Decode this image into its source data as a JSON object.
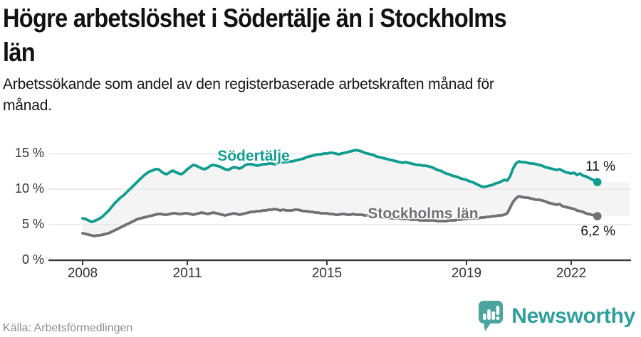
{
  "header": {
    "title": "Högre arbetslöshet i Södertälje än i Stockholms län",
    "title_lines": [
      "Högre arbetslöshet i Södertälje än i Stockholms",
      "län"
    ],
    "subtitle": "Arbetssökande som andel av den registerbaserade arbetskraften månad för månad.",
    "subtitle_lines": [
      "Arbetssökande som andel av den registerbaserade arbetskraften månad för",
      "månad."
    ]
  },
  "footer": {
    "source": "Källa: Arbetsförmedlingen",
    "brand_name": "Newsworthy"
  },
  "colors": {
    "sodertalje": "#119c90",
    "stockholm": "#707075",
    "fill_between": "#f4f4f4",
    "grid": "#e6e6e6",
    "axis": "#3c3c3c",
    "tick_text": "#333333",
    "logo_teal": "#4ba49d",
    "brand_text_teal": "#2f9f9a"
  },
  "chart_data": {
    "type": "line",
    "frequency": "monthly",
    "x_start": "2008-01",
    "x_end": "2022-10",
    "x_ticks": [
      2008,
      2011,
      2015,
      2019,
      2022
    ],
    "y_ticks": [
      {
        "value": 0,
        "label": "0 %"
      },
      {
        "value": 5,
        "label": "5 %"
      },
      {
        "value": 10,
        "label": "10 %"
      },
      {
        "value": 15,
        "label": "15 %"
      }
    ],
    "ylim": [
      0,
      16.5
    ],
    "grid": "horizontal",
    "legend_position": "inline-labels",
    "fill_between_series": true,
    "series": [
      {
        "name": "Södertälje",
        "end_label": "11 %",
        "last_value": 11.0,
        "values": [
          5.9,
          5.8,
          5.6,
          5.4,
          5.5,
          5.7,
          5.9,
          6.2,
          6.6,
          7.0,
          7.5,
          8.0,
          8.4,
          8.8,
          9.1,
          9.5,
          9.9,
          10.3,
          10.7,
          11.1,
          11.5,
          11.9,
          12.2,
          12.5,
          12.6,
          12.8,
          12.8,
          12.5,
          12.2,
          12.1,
          12.4,
          12.6,
          12.4,
          12.2,
          12.1,
          12.4,
          12.8,
          13.1,
          13.4,
          13.3,
          13.1,
          12.9,
          12.8,
          13.0,
          13.3,
          13.4,
          13.3,
          13.2,
          13.0,
          12.8,
          12.7,
          12.9,
          13.1,
          13.0,
          12.9,
          13.1,
          13.4,
          13.5,
          13.5,
          13.4,
          13.3,
          13.4,
          13.5,
          13.5,
          13.6,
          13.6,
          13.5,
          13.6,
          13.7,
          13.8,
          13.8,
          13.9,
          13.9,
          14.0,
          14.1,
          14.2,
          14.3,
          14.5,
          14.6,
          14.7,
          14.8,
          14.9,
          14.9,
          15.0,
          15.0,
          15.1,
          15.1,
          15.0,
          14.9,
          15.0,
          15.1,
          15.2,
          15.3,
          15.4,
          15.5,
          15.4,
          15.3,
          15.1,
          15.0,
          14.9,
          14.8,
          14.6,
          14.5,
          14.4,
          14.3,
          14.2,
          14.1,
          14.0,
          13.9,
          13.8,
          13.7,
          13.8,
          13.7,
          13.6,
          13.5,
          13.4,
          13.4,
          13.3,
          13.3,
          13.2,
          13.1,
          12.9,
          12.7,
          12.6,
          12.4,
          12.2,
          12.1,
          11.9,
          11.8,
          11.7,
          11.5,
          11.4,
          11.3,
          11.1,
          11.0,
          10.8,
          10.6,
          10.4,
          10.3,
          10.4,
          10.5,
          10.6,
          10.8,
          10.9,
          11.1,
          11.3,
          11.2,
          11.8,
          12.9,
          13.6,
          13.9,
          13.8,
          13.8,
          13.7,
          13.6,
          13.6,
          13.5,
          13.4,
          13.3,
          13.1,
          13.0,
          12.9,
          12.8,
          12.7,
          12.8,
          12.6,
          12.4,
          12.3,
          12.2,
          12.3,
          12.0,
          12.2,
          11.9,
          11.8,
          11.6,
          11.4,
          11.2,
          11.0
        ]
      },
      {
        "name": "Stockholms län",
        "end_label": "6,2 %",
        "last_value": 6.2,
        "values": [
          3.8,
          3.7,
          3.6,
          3.5,
          3.4,
          3.5,
          3.5,
          3.6,
          3.7,
          3.8,
          4.0,
          4.2,
          4.4,
          4.6,
          4.8,
          5.0,
          5.2,
          5.4,
          5.6,
          5.8,
          5.9,
          6.0,
          6.1,
          6.2,
          6.3,
          6.4,
          6.5,
          6.5,
          6.4,
          6.4,
          6.5,
          6.6,
          6.6,
          6.5,
          6.5,
          6.6,
          6.6,
          6.5,
          6.4,
          6.5,
          6.6,
          6.7,
          6.6,
          6.5,
          6.6,
          6.7,
          6.6,
          6.5,
          6.4,
          6.3,
          6.4,
          6.5,
          6.6,
          6.5,
          6.4,
          6.5,
          6.6,
          6.7,
          6.8,
          6.8,
          6.9,
          6.9,
          7.0,
          7.0,
          7.1,
          7.1,
          7.2,
          7.1,
          7.0,
          7.1,
          7.0,
          7.0,
          7.0,
          7.1,
          7.1,
          7.0,
          6.9,
          6.9,
          6.8,
          6.8,
          6.7,
          6.7,
          6.6,
          6.6,
          6.6,
          6.5,
          6.5,
          6.4,
          6.4,
          6.5,
          6.5,
          6.4,
          6.4,
          6.5,
          6.4,
          6.4,
          6.4,
          6.3,
          6.3,
          6.2,
          6.2,
          6.1,
          6.1,
          6.0,
          6.0,
          6.0,
          5.9,
          5.9,
          5.9,
          5.9,
          5.8,
          5.8,
          5.8,
          5.7,
          5.7,
          5.7,
          5.6,
          5.6,
          5.6,
          5.6,
          5.6,
          5.6,
          5.5,
          5.5,
          5.5,
          5.5,
          5.6,
          5.6,
          5.6,
          5.7,
          5.7,
          5.8,
          5.8,
          5.9,
          5.9,
          5.9,
          5.9,
          6.0,
          6.0,
          6.1,
          6.1,
          6.2,
          6.2,
          6.3,
          6.3,
          6.4,
          6.6,
          7.4,
          8.2,
          8.7,
          9.0,
          8.9,
          8.8,
          8.8,
          8.7,
          8.6,
          8.5,
          8.5,
          8.4,
          8.3,
          8.1,
          8.0,
          7.9,
          7.8,
          7.9,
          7.6,
          7.5,
          7.4,
          7.3,
          7.2,
          7.0,
          6.9,
          6.8,
          6.6,
          6.5,
          6.4,
          6.3,
          6.2
        ]
      }
    ]
  }
}
